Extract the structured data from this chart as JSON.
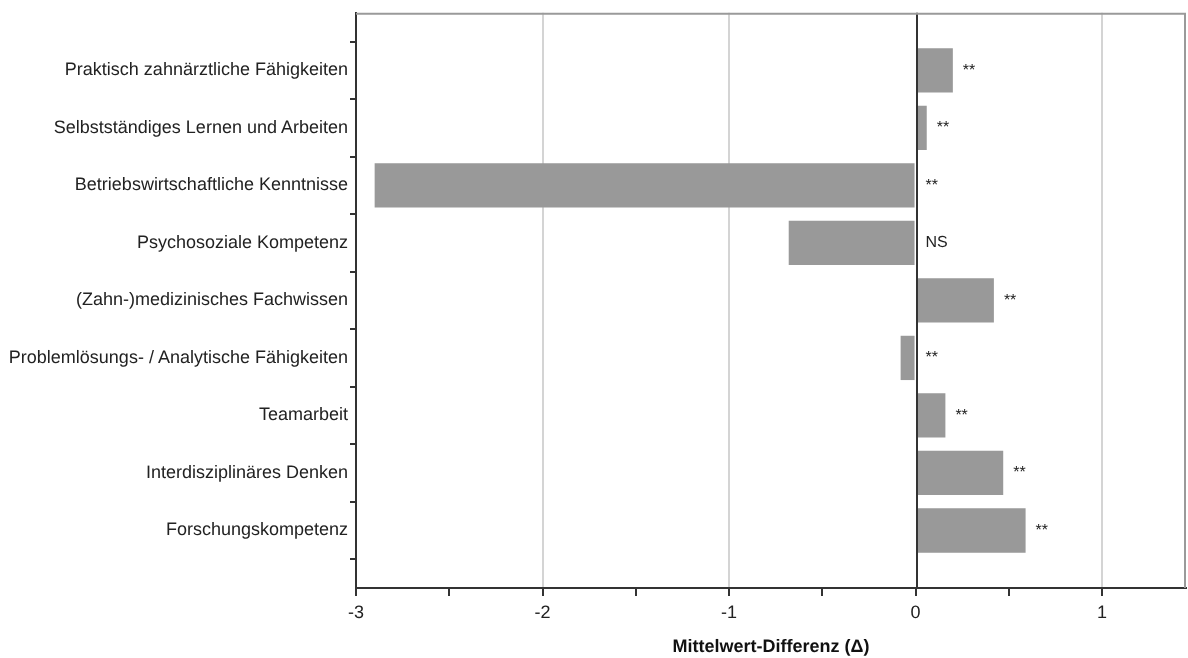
{
  "chart_data": {
    "type": "bar",
    "orientation": "horizontal",
    "xlabel": "Mittelwert-Differenz (Δ)",
    "categories": [
      "Praktisch zahnärztliche Fähigkeiten",
      "Selbstständiges Lernen und Arbeiten",
      "Betriebswirtschaftliche Kenntnisse",
      "Psychosoziale Kompetenz",
      "(Zahn-)medizinisches Fachwissen",
      "Problemlösungs- / Analytische Fähigkeiten",
      "Teamarbeit",
      "Interdisziplinäres Denken",
      "Forschungskompetenz"
    ],
    "values": [
      0.2,
      0.06,
      -2.9,
      -0.68,
      0.42,
      -0.08,
      0.16,
      0.47,
      0.59
    ],
    "color": "#999999",
    "value_labels": [
      "**",
      "**",
      "**",
      "NS",
      "**",
      "**",
      "**",
      "**",
      "**"
    ],
    "xlim": [
      -3,
      1.45
    ],
    "xticks": [
      -3,
      {
        "value": -2.5,
        "label": null
      },
      -2,
      {
        "value": -1.5,
        "label": null
      },
      -1,
      {
        "value": -0.5,
        "label": null
      },
      0,
      {
        "value": 0.5,
        "label": null
      },
      1
    ],
    "grid": "x",
    "ref_lines": [
      {
        "axis": "x",
        "value": 0,
        "color": "#333333"
      }
    ]
  }
}
